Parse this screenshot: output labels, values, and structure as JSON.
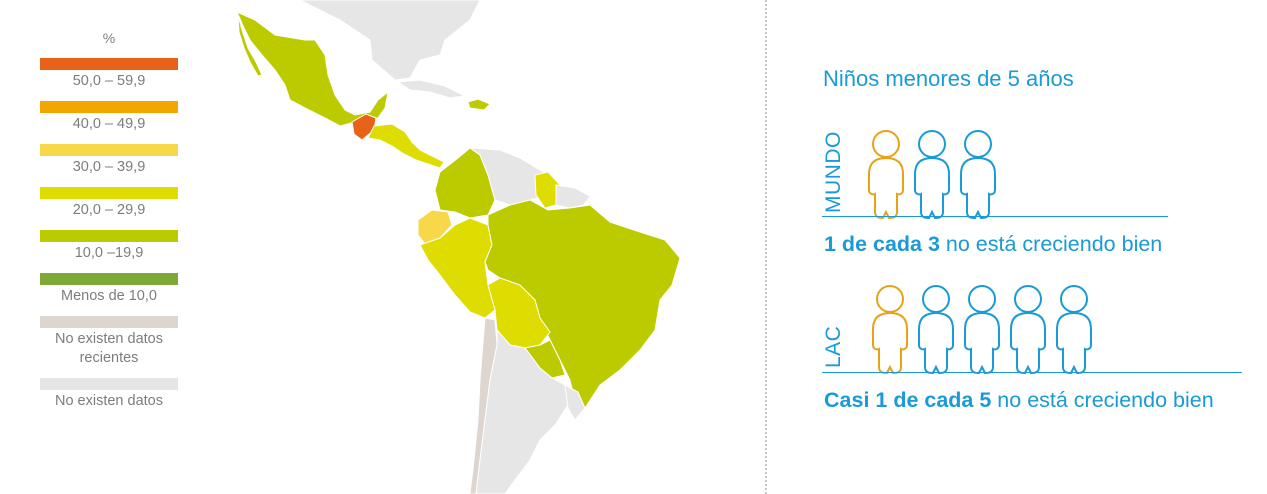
{
  "legend": {
    "title": "%",
    "items": [
      {
        "label": "50,0 – 59,9",
        "color": "#e8621a"
      },
      {
        "label": "40,0 – 49,9",
        "color": "#f2a600"
      },
      {
        "label": "30,0 – 39,9",
        "color": "#f7d84a"
      },
      {
        "label": "20,0 – 29,9",
        "color": "#dedc00"
      },
      {
        "label": "10,0 –19,9",
        "color": "#bcca00"
      },
      {
        "label": "Menos de 10,0",
        "color": "#7ea936"
      },
      {
        "label": "No existen datos recientes",
        "color": "#ddd5cf"
      },
      {
        "label": "No existen datos",
        "color": "#e6e6e6"
      }
    ]
  },
  "info": {
    "title": "Niños menores de 5 años",
    "accent_color": "#1a9ad6",
    "highlight_color": "#e8a21a",
    "groups": [
      {
        "label": "MUNDO",
        "stat_bold": "1 de cada 3",
        "stat_rest": " no está creciendo bien",
        "figures": 3,
        "highlighted": 1
      },
      {
        "label": "LAC",
        "stat_bold": "Casi 1 de cada 5",
        "stat_rest": " no está creciendo bien",
        "figures": 5,
        "highlighted": 1
      }
    ]
  },
  "map": {
    "colors": {
      "rate_10_19": "#bcca00",
      "rate_20_29": "#dedc00",
      "rate_30_39": "#f7d84a",
      "rate_50_59": "#e8621a",
      "no_recent_data": "#ddd5cf",
      "no_data": "#e6e6e6"
    }
  }
}
